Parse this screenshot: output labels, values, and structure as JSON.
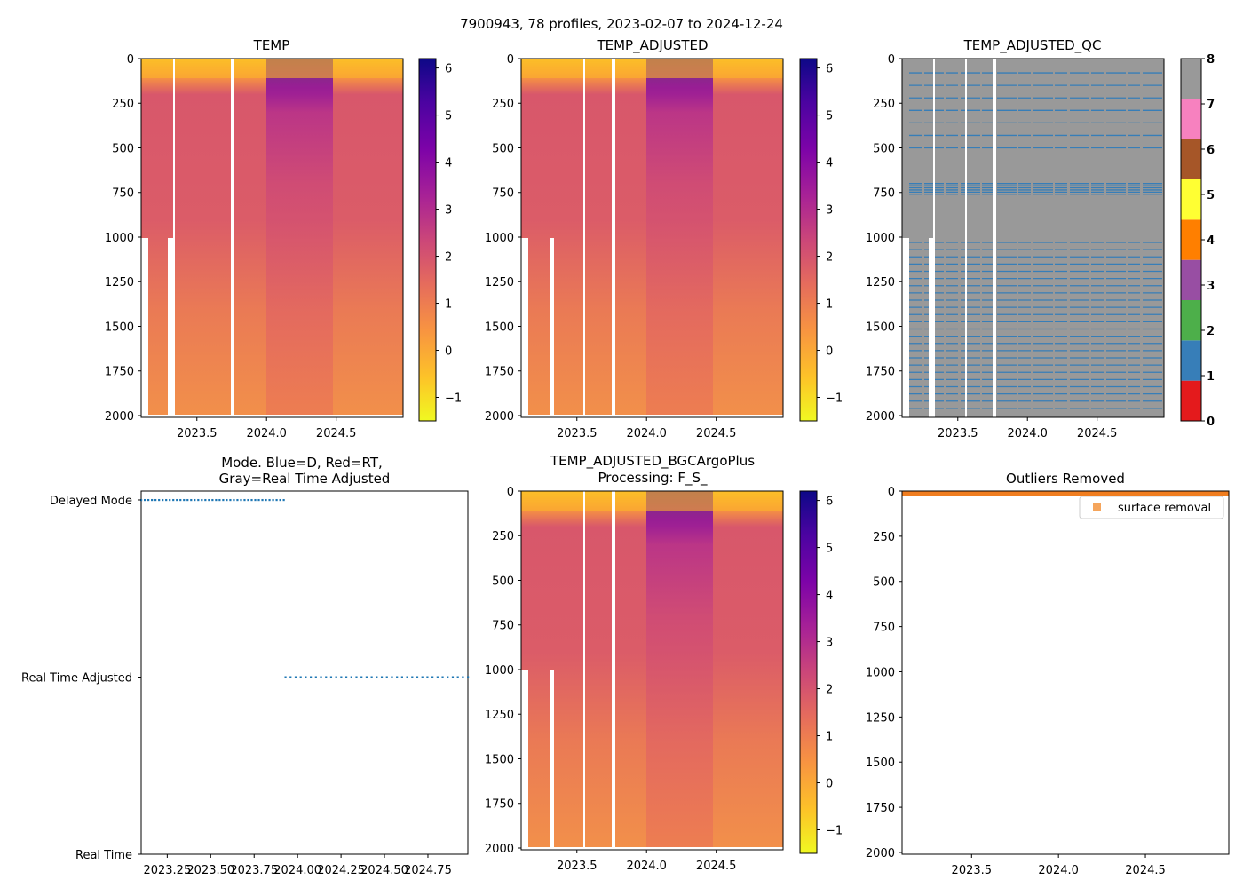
{
  "suptitle": "7900943, 78 profiles, 2023-02-07 to 2024-12-24",
  "chart_data": [
    {
      "type": "heatmap",
      "id": "temp",
      "title": "TEMP",
      "x_ticks": [
        "2023.5",
        "2024.0",
        "2024.5"
      ],
      "x_tick_values": [
        2023.5,
        2024.0,
        2024.5
      ],
      "xlim": [
        2023.1,
        2024.98
      ],
      "y_ticks": [
        "0",
        "250",
        "500",
        "750",
        "1000",
        "1250",
        "1500",
        "1750",
        "2000"
      ],
      "ylim": [
        2010,
        0
      ],
      "colorbar": {
        "ticks": [
          "6",
          "5",
          "4",
          "3",
          "2",
          "1",
          "0",
          "−1"
        ],
        "tick_values": [
          6,
          5,
          4,
          3,
          2,
          1,
          0,
          -1
        ],
        "range": [
          -1.5,
          6.2
        ],
        "colormap": "plasma_r"
      },
      "gaps_x": [
        2023.33,
        2023.76
      ]
    },
    {
      "type": "heatmap",
      "id": "temp-adj",
      "title": "TEMP_ADJUSTED",
      "x_ticks": [
        "2023.5",
        "2024.0",
        "2024.5"
      ],
      "x_tick_values": [
        2023.5,
        2024.0,
        2024.5
      ],
      "xlim": [
        2023.1,
        2024.98
      ],
      "y_ticks": [
        "0",
        "250",
        "500",
        "750",
        "1000",
        "1250",
        "1500",
        "1750",
        "2000"
      ],
      "ylim": [
        2010,
        0
      ],
      "colorbar": {
        "ticks": [
          "6",
          "5",
          "4",
          "3",
          "2",
          "1",
          "0",
          "−1"
        ],
        "tick_values": [
          6,
          5,
          4,
          3,
          2,
          1,
          0,
          -1
        ],
        "range": [
          -1.5,
          6.2
        ],
        "colormap": "plasma_r"
      },
      "gaps_x": [
        2023.55,
        2023.76
      ]
    },
    {
      "type": "heatmap",
      "id": "temp-qc",
      "title": "TEMP_ADJUSTED_QC",
      "x_ticks": [
        "2023.5",
        "2024.0",
        "2024.5"
      ],
      "x_tick_values": [
        2023.5,
        2024.0,
        2024.5
      ],
      "xlim": [
        2023.1,
        2024.98
      ],
      "y_ticks": [
        "0",
        "250",
        "500",
        "750",
        "1000",
        "1250",
        "1500",
        "1750",
        "2000"
      ],
      "ylim": [
        2010,
        0
      ],
      "colorbar": {
        "ticks": [
          "8",
          "7",
          "6",
          "5",
          "4",
          "3",
          "2",
          "1",
          "0"
        ],
        "tick_values": [
          8,
          7,
          6,
          5,
          4,
          3,
          2,
          1,
          0
        ],
        "range": [
          0,
          8
        ],
        "colors": [
          "#e41a1c",
          "#377eb8",
          "#4daf4a",
          "#984ea3",
          "#ff7f00",
          "#ffff33",
          "#a65628",
          "#f781bf",
          "#999999"
        ]
      },
      "gaps_x": [
        2023.33,
        2023.55,
        2023.76
      ]
    },
    {
      "type": "scatter",
      "id": "mode",
      "title_lines": [
        "Mode. Blue=D, Red=RT,",
        "Gray=Real Time Adjusted"
      ],
      "y_ticks": [
        "Delayed Mode",
        "Real Time Adjusted",
        "Real Time"
      ],
      "y_tick_values": [
        2,
        1,
        0
      ],
      "ylim": [
        0,
        2.05
      ],
      "x_ticks": [
        "2023.25",
        "2023.50",
        "2023.75",
        "2024.00",
        "2024.25",
        "2024.50",
        "2024.75"
      ],
      "x_tick_values": [
        2023.25,
        2023.5,
        2023.75,
        2024.0,
        2024.25,
        2024.5,
        2024.75
      ],
      "xlim": [
        2023.1,
        2024.98
      ],
      "series": [
        {
          "name": "Delayed Mode",
          "x_start": 2023.1,
          "x_end": 2023.92,
          "y": 2,
          "count": 41,
          "color": "#1f77b4"
        },
        {
          "name": "Real Time Adjusted",
          "x_start": 2023.93,
          "x_end": 2024.98,
          "y": 1,
          "count": 37,
          "color": "#1f77b4"
        }
      ]
    },
    {
      "type": "heatmap",
      "id": "temp-bgc",
      "title_lines": [
        "TEMP_ADJUSTED_BGCArgoPlus",
        "Processing: F_S_"
      ],
      "x_ticks": [
        "2023.5",
        "2024.0",
        "2024.5"
      ],
      "x_tick_values": [
        2023.5,
        2024.0,
        2024.5
      ],
      "xlim": [
        2023.1,
        2024.98
      ],
      "y_ticks": [
        "0",
        "250",
        "500",
        "750",
        "1000",
        "1250",
        "1500",
        "1750",
        "2000"
      ],
      "ylim": [
        2010,
        0
      ],
      "colorbar": {
        "ticks": [
          "6",
          "5",
          "4",
          "3",
          "2",
          "1",
          "0",
          "−1"
        ],
        "tick_values": [
          6,
          5,
          4,
          3,
          2,
          1,
          0,
          -1
        ],
        "range": [
          -1.5,
          6.2
        ],
        "colormap": "plasma_r"
      },
      "gaps_x": [
        2023.55,
        2023.76
      ]
    },
    {
      "type": "scatter",
      "id": "outliers",
      "title": "Outliers Removed",
      "x_ticks": [
        "2023.5",
        "2024.0",
        "2024.5"
      ],
      "x_tick_values": [
        2023.5,
        2024.0,
        2024.5
      ],
      "xlim": [
        2023.1,
        2024.98
      ],
      "y_ticks": [
        "0",
        "250",
        "500",
        "750",
        "1000",
        "1250",
        "1500",
        "1750",
        "2000"
      ],
      "ylim": [
        2010,
        0
      ],
      "legend": {
        "label": "surface removal",
        "color": "#f5a55c",
        "placement": "top-right"
      },
      "series": [
        {
          "name": "surface removal",
          "depth_range": [
            0,
            25
          ],
          "color": "#f07d1f"
        }
      ]
    }
  ]
}
